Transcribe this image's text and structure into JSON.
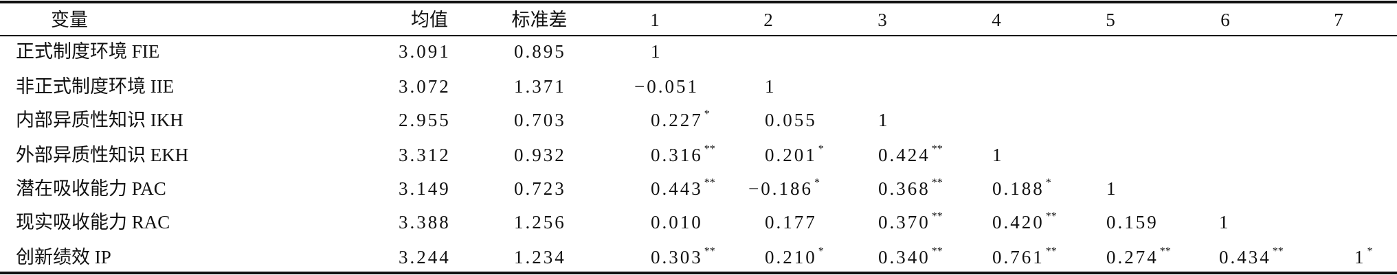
{
  "table": {
    "header": [
      "变量",
      "均值",
      "标准差",
      "1",
      "2",
      "3",
      "4",
      "5",
      "6",
      "7"
    ],
    "rows": [
      {
        "name": "正式制度环境 FIE",
        "mean": "3.091",
        "sd": "0.895",
        "corr": [
          {
            "value": "1"
          }
        ]
      },
      {
        "name": "非正式制度环境 IIE",
        "mean": "3.072",
        "sd": "1.371",
        "corr": [
          {
            "value": "−0.051"
          },
          {
            "value": "1"
          }
        ]
      },
      {
        "name": "内部异质性知识 IKH",
        "mean": "2.955",
        "sd": "0.703",
        "corr": [
          {
            "value": "0.227",
            "sig": "*"
          },
          {
            "value": "0.055"
          },
          {
            "value": "1"
          }
        ]
      },
      {
        "name": "外部异质性知识 EKH",
        "mean": "3.312",
        "sd": "0.932",
        "corr": [
          {
            "value": "0.316",
            "sig": "**"
          },
          {
            "value": "0.201",
            "sig": "*"
          },
          {
            "value": "0.424",
            "sig": "**"
          },
          {
            "value": "1"
          }
        ]
      },
      {
        "name": "潜在吸收能力 PAC",
        "mean": "3.149",
        "sd": "0.723",
        "corr": [
          {
            "value": "0.443",
            "sig": "**"
          },
          {
            "value": "−0.186",
            "sig": "*"
          },
          {
            "value": "0.368",
            "sig": "**"
          },
          {
            "value": "0.188",
            "sig": "*"
          },
          {
            "value": "1"
          }
        ]
      },
      {
        "name": "现实吸收能力 RAC",
        "mean": "3.388",
        "sd": "1.256",
        "corr": [
          {
            "value": "0.010"
          },
          {
            "value": "0.177"
          },
          {
            "value": "0.370",
            "sig": "**"
          },
          {
            "value": "0.420",
            "sig": "**"
          },
          {
            "value": "0.159"
          },
          {
            "value": "1"
          }
        ]
      },
      {
        "name": "创新绩效 IP",
        "mean": "3.244",
        "sd": "1.234",
        "corr": [
          {
            "value": "0.303",
            "sig": "**"
          },
          {
            "value": "0.210",
            "sig": "*"
          },
          {
            "value": "0.340",
            "sig": "**"
          },
          {
            "value": "0.761",
            "sig": "**"
          },
          {
            "value": "0.274",
            "sig": "**"
          },
          {
            "value": "0.434",
            "sig": "**"
          },
          {
            "value": "1",
            "sig": "*"
          }
        ]
      }
    ]
  }
}
